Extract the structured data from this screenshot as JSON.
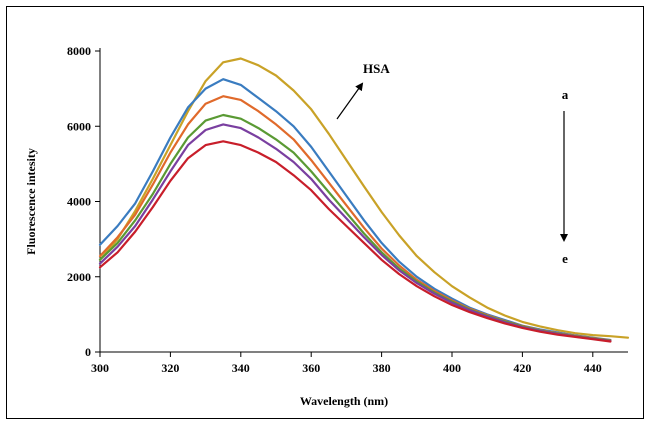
{
  "chart_data": {
    "type": "line",
    "title": "",
    "xlabel": "Wavelength (nm)",
    "ylabel": "Fluorescence intesity",
    "xlim": [
      300,
      450
    ],
    "ylim": [
      0,
      8000
    ],
    "xticks": [
      300,
      320,
      340,
      360,
      380,
      400,
      420,
      440
    ],
    "yticks": [
      0,
      2000,
      4000,
      6000,
      8000
    ],
    "grid": false,
    "legend": "none",
    "annotations": {
      "hsa": "HSA",
      "start": "a",
      "end": "e"
    },
    "series": [
      {
        "color": "#c9a227",
        "x": [
          300,
          305,
          310,
          315,
          320,
          325,
          330,
          335,
          340,
          345,
          350,
          355,
          360,
          365,
          370,
          375,
          380,
          385,
          390,
          395,
          400,
          405,
          410,
          415,
          420,
          425,
          430,
          435,
          440,
          445,
          450
        ],
        "y": [
          2450,
          3000,
          3750,
          4600,
          5500,
          6400,
          7200,
          7700,
          7800,
          7620,
          7350,
          6950,
          6450,
          5800,
          5100,
          4400,
          3720,
          3100,
          2550,
          2120,
          1750,
          1450,
          1180,
          970,
          800,
          680,
          580,
          500,
          450,
          420,
          380
        ]
      },
      {
        "color": "#3a7cc0",
        "x": [
          300,
          305,
          310,
          315,
          320,
          325,
          330,
          335,
          340,
          345,
          350,
          355,
          360,
          365,
          370,
          375,
          380,
          385,
          390,
          395,
          400,
          405,
          410,
          415,
          420,
          425,
          430,
          435,
          440,
          445
        ],
        "y": [
          2850,
          3350,
          3950,
          4800,
          5700,
          6500,
          7000,
          7250,
          7100,
          6750,
          6400,
          6000,
          5450,
          4800,
          4150,
          3500,
          2900,
          2400,
          2000,
          1680,
          1420,
          1180,
          1000,
          850,
          700,
          600,
          520,
          440,
          380,
          320
        ]
      },
      {
        "color": "#e06a2b",
        "x": [
          300,
          305,
          310,
          315,
          320,
          325,
          330,
          335,
          340,
          345,
          350,
          355,
          360,
          365,
          370,
          375,
          380,
          385,
          390,
          395,
          400,
          405,
          410,
          415,
          420,
          425,
          430,
          435,
          440,
          445
        ],
        "y": [
          2550,
          3050,
          3650,
          4450,
          5300,
          6050,
          6600,
          6800,
          6700,
          6400,
          6050,
          5650,
          5100,
          4500,
          3900,
          3300,
          2750,
          2300,
          1920,
          1620,
          1370,
          1150,
          980,
          820,
          690,
          580,
          500,
          430,
          370,
          310
        ]
      },
      {
        "color": "#5a9a34",
        "x": [
          300,
          305,
          310,
          315,
          320,
          325,
          330,
          335,
          340,
          345,
          350,
          355,
          360,
          365,
          370,
          375,
          380,
          385,
          390,
          395,
          400,
          405,
          410,
          415,
          420,
          425,
          430,
          435,
          440,
          445
        ],
        "y": [
          2450,
          2900,
          3500,
          4200,
          5000,
          5700,
          6150,
          6300,
          6200,
          5950,
          5650,
          5300,
          4800,
          4250,
          3700,
          3150,
          2650,
          2220,
          1870,
          1580,
          1340,
          1130,
          960,
          810,
          680,
          570,
          490,
          420,
          360,
          300
        ]
      },
      {
        "color": "#7a3fa0",
        "x": [
          300,
          305,
          310,
          315,
          320,
          325,
          330,
          335,
          340,
          345,
          350,
          355,
          360,
          365,
          370,
          375,
          380,
          385,
          390,
          395,
          400,
          405,
          410,
          415,
          420,
          425,
          430,
          435,
          440,
          445
        ],
        "y": [
          2350,
          2800,
          3350,
          4050,
          4800,
          5500,
          5900,
          6050,
          5950,
          5700,
          5400,
          5050,
          4600,
          4050,
          3550,
          3050,
          2580,
          2170,
          1830,
          1550,
          1310,
          1110,
          940,
          790,
          660,
          560,
          480,
          410,
          350,
          290
        ]
      },
      {
        "color": "#c81e2a",
        "x": [
          300,
          305,
          310,
          315,
          320,
          325,
          330,
          335,
          340,
          345,
          350,
          355,
          360,
          365,
          370,
          375,
          380,
          385,
          390,
          395,
          400,
          405,
          410,
          415,
          420,
          425,
          430,
          435,
          440,
          445
        ],
        "y": [
          2250,
          2650,
          3200,
          3850,
          4550,
          5150,
          5500,
          5600,
          5500,
          5300,
          5050,
          4700,
          4300,
          3800,
          3350,
          2900,
          2450,
          2070,
          1750,
          1480,
          1250,
          1060,
          900,
          760,
          640,
          540,
          460,
          400,
          340,
          280
        ]
      }
    ]
  }
}
